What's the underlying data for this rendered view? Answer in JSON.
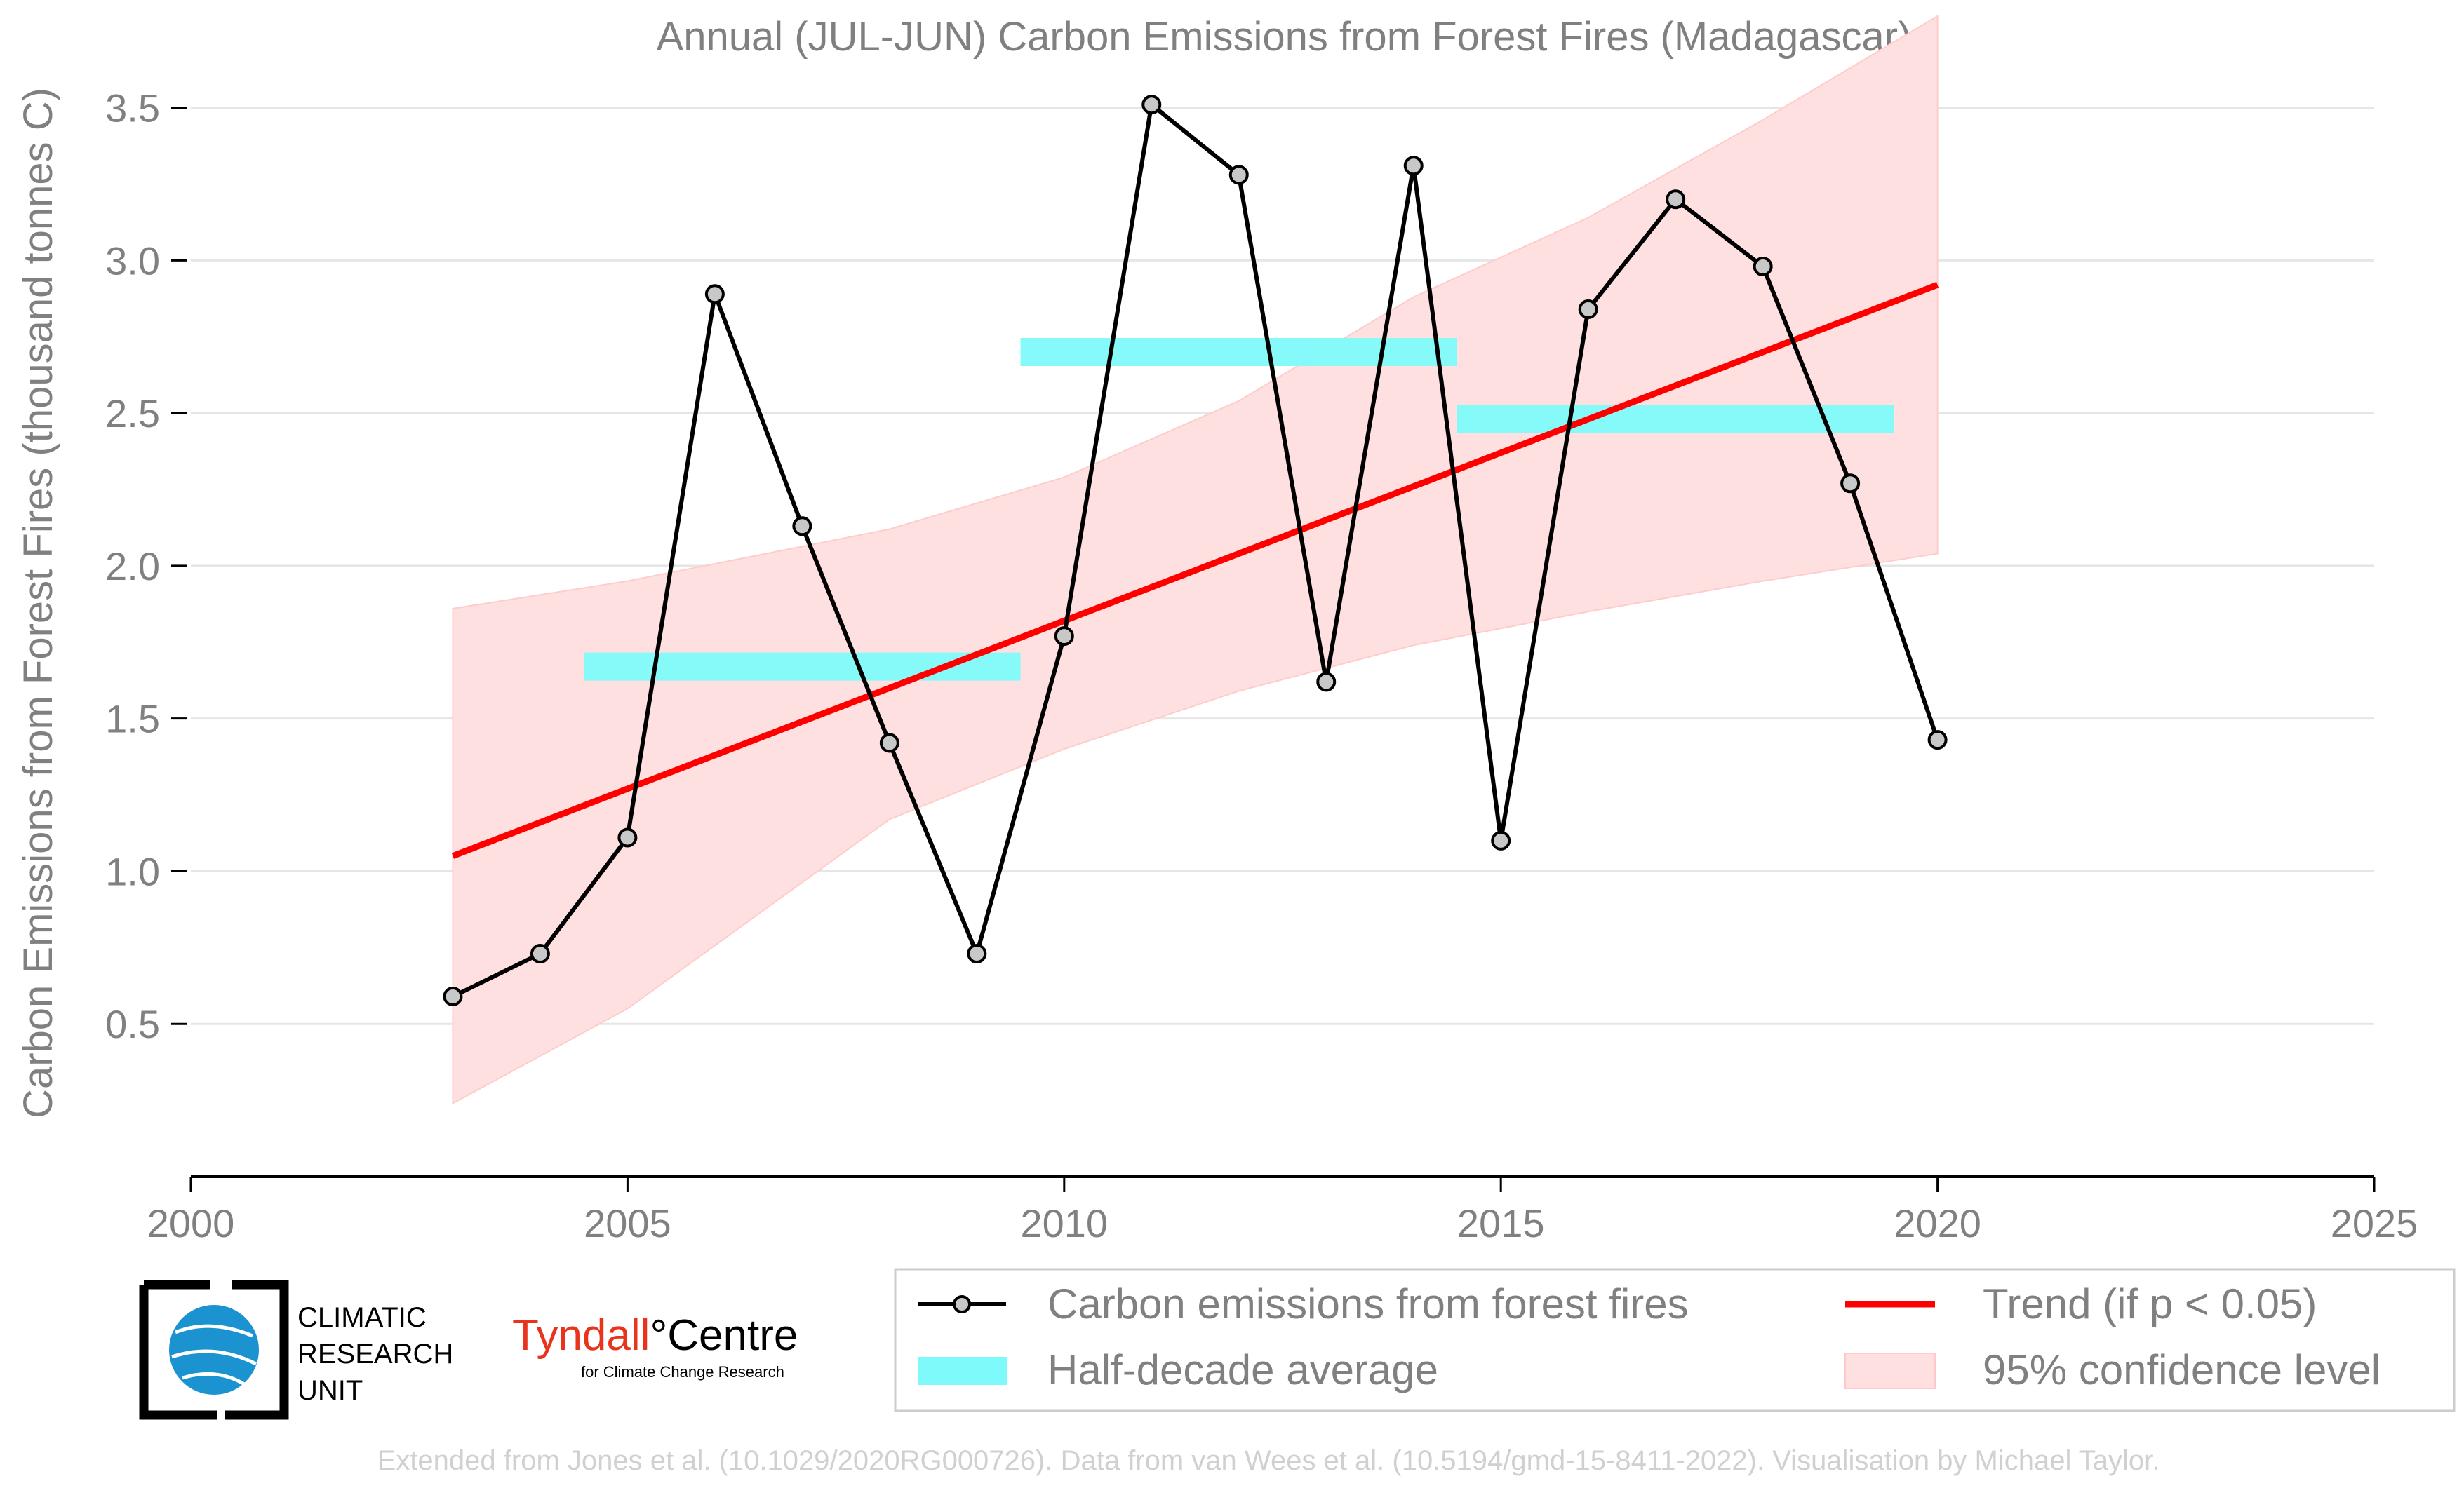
{
  "chart_data": {
    "type": "line",
    "title": "Annual (JUL-JUN) Carbon Emissions from Forest Fires (Madagascar)",
    "ylabel": "Carbon Emissions from Forest Fires (thousand tonnes C)",
    "xlabel": "",
    "xlim": [
      2000,
      2025
    ],
    "ylim": [
      0.0,
      3.6
    ],
    "x_ticks": [
      "2000",
      "2005",
      "2010",
      "2015",
      "2020",
      "2025"
    ],
    "y_ticks": [
      "0.5",
      "1.0",
      "1.5",
      "2.0",
      "2.5",
      "3.0",
      "3.5"
    ],
    "grid": "horizontal",
    "series": [
      {
        "name": "Carbon emissions from forest fires",
        "color": "#000000",
        "x": [
          2003,
          2004,
          2005,
          2006,
          2007,
          2008,
          2009,
          2010,
          2011,
          2012,
          2013,
          2014,
          2015,
          2016,
          2017,
          2018,
          2019,
          2020
        ],
        "values": [
          0.59,
          0.73,
          1.11,
          2.89,
          2.13,
          1.42,
          0.73,
          1.77,
          3.51,
          3.28,
          1.62,
          3.31,
          1.1,
          2.84,
          3.2,
          2.98,
          2.27,
          1.43
        ]
      }
    ],
    "half_decade_average": {
      "name": "Half-decade average",
      "color": "#7ffafa",
      "segments": [
        {
          "x0": 2004.5,
          "x1": 2009.5,
          "y": 1.67
        },
        {
          "x0": 2009.5,
          "x1": 2014.5,
          "y": 2.7
        },
        {
          "x0": 2014.5,
          "x1": 2019.5,
          "y": 2.48
        }
      ]
    },
    "trend": {
      "name": "Trend (if p < 0.05)",
      "color": "#ff0000",
      "x": [
        2003,
        2020
      ],
      "values": [
        1.05,
        2.92
      ]
    },
    "confidence_band": {
      "name": "95% confidence level",
      "color": "#ffe0e0",
      "x": [
        2003,
        2005,
        2008,
        2010,
        2012,
        2014,
        2016,
        2018,
        2020
      ],
      "upper": [
        1.86,
        1.95,
        2.12,
        2.29,
        2.54,
        2.88,
        3.14,
        3.46,
        3.8
      ],
      "lower": [
        0.24,
        0.55,
        1.17,
        1.4,
        1.59,
        1.74,
        1.85,
        1.95,
        2.04
      ]
    },
    "legend": {
      "placement": "bottom-right",
      "entries": [
        "Carbon emissions from forest fires",
        "Trend (if p < 0.05)",
        "Half-decade average",
        "95% confidence level"
      ]
    }
  },
  "logos": {
    "cru_lines": [
      "CLIMATIC",
      "RESEARCH",
      "UNIT"
    ],
    "tyndall_main": "Tyndall",
    "tyndall_suffix": "°Centre",
    "tyndall_sub": "for Climate Change Research"
  },
  "footer": "Extended from Jones et al. (10.1029/2020RG000726). Data from van Wees et al. (10.5194/gmd-15-8411-2022). Visualisation by Michael Taylor."
}
